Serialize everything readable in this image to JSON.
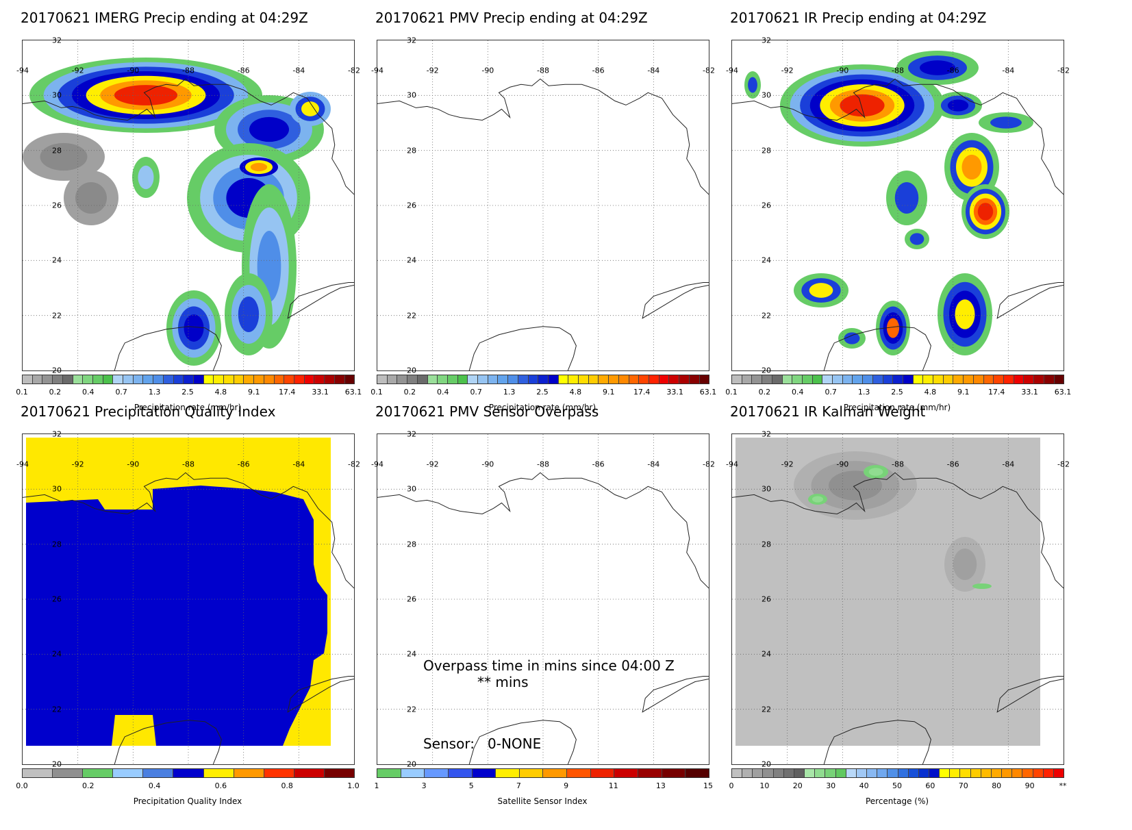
{
  "panels": [
    {
      "title": "20170621 IMERG Precip ending at 04:29Z",
      "cb_label": "Precipitation rate (mm/hr)",
      "cb": "precip",
      "field": "imerg"
    },
    {
      "title": "20170621 PMV Precip ending at 04:29Z",
      "cb_label": "Precipitation rate (mm/hr)",
      "cb": "precip",
      "field": "none"
    },
    {
      "title": "20170621 IR Precip ending at 04:29Z",
      "cb_label": "Precipitation rate (mm/hr)",
      "cb": "precip",
      "field": "ir"
    },
    {
      "title": "20170621 Precipitation Quality Index",
      "cb_label": "Precipitation Quality Index",
      "cb": "quality",
      "field": "quality"
    },
    {
      "title": "20170621 PMV Sensor Overpass",
      "cb_label": "Satellite Sensor Index",
      "cb": "sensor",
      "field": "none",
      "overpass_line1": "Overpass time in mins since 04:00 Z",
      "overpass_line2": "** mins",
      "sensor_text": "Sensor:   0-NONE"
    },
    {
      "title": "20170621 IR Kalman Weight",
      "cb_label": "Percentage (%)",
      "cb": "percent",
      "field": "kalman"
    }
  ],
  "lat_labels": [
    "32",
    "30",
    "28",
    "26",
    "24",
    "22",
    "20"
  ],
  "lon_labels": [
    "-94",
    "-92",
    "-90",
    "-88",
    "-86",
    "-84",
    "-82"
  ],
  "colorbars": {
    "precip": {
      "colors": [
        "#bdbdbd",
        "#a8a8a8",
        "#939393",
        "#7f7f7f",
        "#6a6a6a",
        "#9adf9a",
        "#80d680",
        "#66cc66",
        "#4cc14c",
        "#b0d4f5",
        "#96c4f2",
        "#7cb3ef",
        "#62a3ec",
        "#4f8ee8",
        "#2f5fdf",
        "#1a3fd9",
        "#0b1fcf",
        "#0000c8",
        "#ffff00",
        "#ffee00",
        "#ffdd00",
        "#ffcc00",
        "#ffaa00",
        "#ff9900",
        "#ff8800",
        "#ff6600",
        "#ff4400",
        "#ff2200",
        "#ee0000",
        "#cc0000",
        "#aa0000",
        "#880000",
        "#660000"
      ],
      "ticks": [
        "0.1",
        "0.2",
        "0.4",
        "0.7",
        "1.3",
        "2.5",
        "4.8",
        "9.1",
        "17.4",
        "33.1",
        "63.1"
      ]
    },
    "quality": {
      "colors": [
        "#c0c0c0",
        "#909090",
        "#66cc66",
        "#99ccff",
        "#4a7fe0",
        "#0000cc",
        "#ffee00",
        "#ff9900",
        "#ff3300",
        "#cc0000",
        "#770000"
      ],
      "ticks": [
        "0.0",
        "0.2",
        "0.4",
        "0.6",
        "0.8",
        "1.0"
      ]
    },
    "sensor": {
      "colors": [
        "#66cc66",
        "#99ccff",
        "#6699ff",
        "#3355ee",
        "#0000cc",
        "#ffee00",
        "#ffcc00",
        "#ff9900",
        "#ff5500",
        "#ee2200",
        "#cc0000",
        "#990000",
        "#770000",
        "#550000"
      ],
      "ticks": [
        "1",
        "3",
        "5",
        "7",
        "9",
        "11",
        "13",
        "15"
      ]
    },
    "percent": {
      "colors": [
        "#c0c0c0",
        "#b0b0b0",
        "#a0a0a0",
        "#909090",
        "#808080",
        "#707070",
        "#606060",
        "#a8e6a8",
        "#90dc90",
        "#78d278",
        "#60c860",
        "#b8d8f8",
        "#a0c8f5",
        "#88b8f2",
        "#70a8ef",
        "#5090e8",
        "#3070e0",
        "#1850d8",
        "#0830d0",
        "#0010c8",
        "#ffff00",
        "#ffee00",
        "#ffdd00",
        "#ffcc00",
        "#ffbb00",
        "#ffaa00",
        "#ff9900",
        "#ff8800",
        "#ff6600",
        "#ff4400",
        "#ff2200",
        "#ee0000"
      ],
      "ticks": [
        "0",
        "10",
        "20",
        "30",
        "40",
        "50",
        "60",
        "70",
        "80",
        "90",
        "**"
      ]
    }
  }
}
